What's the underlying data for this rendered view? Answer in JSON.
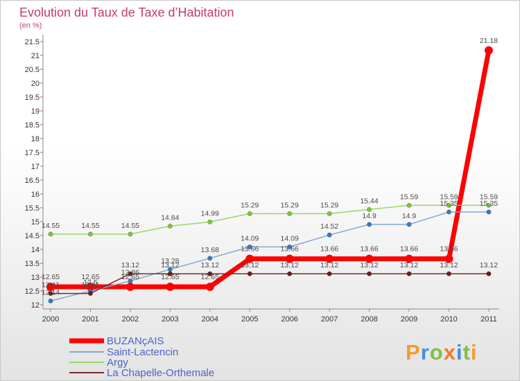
{
  "chart_data": {
    "type": "line",
    "title": "Evolution du Taux de Taxe d’Habitation",
    "subtitle": "(en %)",
    "xlabel": "",
    "ylabel": "",
    "x": [
      "2000",
      "2001",
      "2002",
      "2003",
      "2004",
      "2005",
      "2006",
      "2007",
      "2008",
      "2009",
      "2010",
      "2011"
    ],
    "ylim": [
      12,
      21.5
    ],
    "yticks": [
      12,
      12.5,
      13,
      13.5,
      14,
      14.5,
      15,
      15.5,
      16,
      16.5,
      17,
      17.5,
      18,
      18.5,
      19,
      19.5,
      20,
      20.5,
      21,
      21.5
    ],
    "grid": false,
    "legend_position": "bottom-left",
    "series": [
      {
        "name": "BUZANçAIS",
        "highlight": true,
        "color": "#ff0000",
        "point_color": "#ff0000",
        "values": [
          12.65,
          12.65,
          12.65,
          12.65,
          12.65,
          13.66,
          13.66,
          13.66,
          13.66,
          13.66,
          13.66,
          21.18
        ]
      },
      {
        "name": "Saint-Lactencin",
        "highlight": false,
        "color": "#7ea9d8",
        "point_color": "#3b78c0",
        "values": [
          12.14,
          12.5,
          12.86,
          13.28,
          13.68,
          14.09,
          14.09,
          14.52,
          14.9,
          14.9,
          15.35,
          15.35
        ]
      },
      {
        "name": "Argy",
        "highlight": false,
        "color": "#9ad66a",
        "point_color": "#7fc43d",
        "values": [
          14.55,
          14.55,
          14.55,
          14.84,
          14.99,
          15.29,
          15.29,
          15.29,
          15.44,
          15.59,
          15.59,
          15.59
        ]
      },
      {
        "name": "La Chapelle-Orthemale",
        "highlight": false,
        "color": "#7a2a2a",
        "point_color": "#6b1f1f",
        "values": [
          12.41,
          12.41,
          13.12,
          13.12,
          13.12,
          13.12,
          13.12,
          13.12,
          13.12,
          13.12,
          13.12,
          13.12
        ]
      }
    ]
  },
  "logo": {
    "text": "Proxiti",
    "letter_colors": [
      "#f29b30",
      "#4a8fd8",
      "#7cc242",
      "#f07b2a",
      "#3f8fdc",
      "#7cc242",
      "#f29b30"
    ]
  }
}
